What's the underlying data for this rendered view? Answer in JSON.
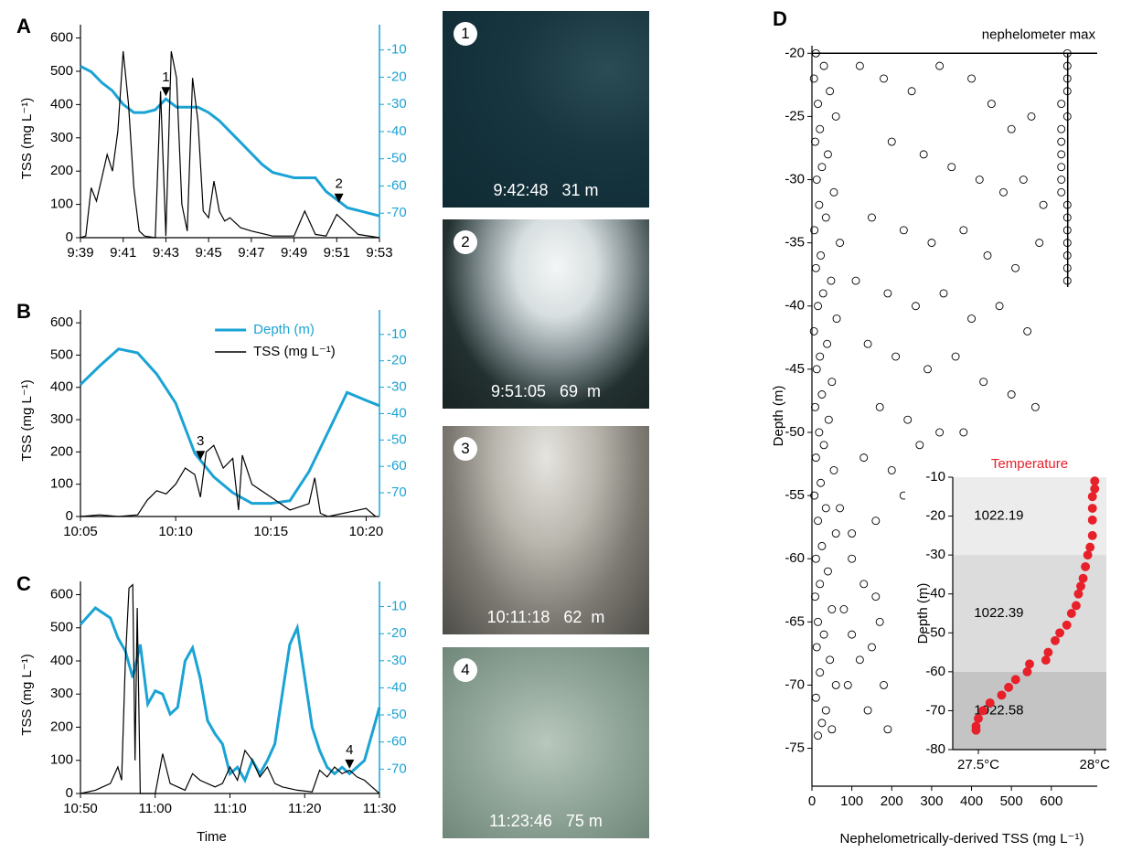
{
  "chart_data": [
    {
      "type": "line",
      "panel": "A",
      "ylabel": "TSS (mg L⁻¹)",
      "xlim": [
        579,
        593
      ],
      "xticks": [
        {
          "value": 579,
          "label": "9:39"
        },
        {
          "value": 581,
          "label": "9:41"
        },
        {
          "value": 583,
          "label": "9:43"
        },
        {
          "value": 585,
          "label": "9:45"
        },
        {
          "value": 587,
          "label": "9:47"
        },
        {
          "value": 589,
          "label": "9:49"
        },
        {
          "value": 591,
          "label": "9:51"
        },
        {
          "value": 593,
          "label": "9:53"
        }
      ],
      "ylim": [
        0,
        640
      ],
      "yticks": [
        0,
        100,
        200,
        300,
        400,
        500,
        600
      ],
      "y2lim": [
        -79,
        -0.7
      ],
      "y2ticks": [
        -70,
        -60,
        -50,
        -40,
        -30,
        -20,
        -10
      ],
      "series": [
        {
          "color": "#1aa3d4",
          "axis": "y2",
          "x": [
            579,
            579.5,
            580,
            580.5,
            581,
            581.5,
            582,
            582.5,
            583,
            583.5,
            584,
            584.5,
            585,
            585.5,
            586,
            586.5,
            587,
            587.5,
            588,
            588.5,
            589,
            589.5,
            590,
            590.5,
            591,
            591.5,
            592,
            592.5,
            593
          ],
          "values": [
            -16,
            -18,
            -22,
            -25,
            -30,
            -33,
            -33,
            -32,
            -28,
            -31,
            -31,
            -31,
            -33,
            -36,
            -40,
            -44,
            -48,
            -52,
            -55,
            -56,
            -57,
            -57,
            -57,
            -62,
            -65,
            -68,
            -69,
            -70,
            -71
          ]
        },
        {
          "color": "#000000",
          "x": [
            579,
            579.25,
            579.5,
            579.75,
            580,
            580.25,
            580.5,
            580.75,
            581,
            581.25,
            581.5,
            581.75,
            582,
            582.5,
            582.75,
            583,
            583.25,
            583.5,
            583.75,
            584,
            584.25,
            584.5,
            584.75,
            585,
            585.25,
            585.5,
            585.75,
            586,
            586.5,
            587,
            588,
            589,
            589.5,
            590,
            590.5,
            591,
            591.5,
            592,
            593
          ],
          "values": [
            0,
            5,
            150,
            110,
            180,
            250,
            200,
            320,
            560,
            400,
            150,
            20,
            5,
            0,
            440,
            5,
            560,
            480,
            100,
            20,
            480,
            350,
            80,
            60,
            170,
            80,
            50,
            60,
            30,
            20,
            5,
            5,
            80,
            10,
            5,
            70,
            40,
            10,
            0
          ]
        }
      ],
      "annotations": [
        {
          "text": "1",
          "x": 583,
          "y": 425
        },
        {
          "text": "2",
          "x": 591.1,
          "y": 105
        }
      ]
    },
    {
      "type": "line",
      "panel": "B",
      "ylabel": "TSS (mg L⁻¹)",
      "legend": "upper right",
      "xlim": [
        605,
        620.7
      ],
      "xticks": [
        {
          "value": 605,
          "label": "10:05"
        },
        {
          "value": 610,
          "label": "10:10"
        },
        {
          "value": 615,
          "label": "10:15"
        },
        {
          "value": 620,
          "label": "10:20"
        }
      ],
      "ylim": [
        0,
        640
      ],
      "yticks": [
        0,
        100,
        200,
        300,
        400,
        500,
        600
      ],
      "y2lim": [
        -79,
        -0.7
      ],
      "y2ticks": [
        -70,
        -60,
        -50,
        -40,
        -30,
        -20,
        -10
      ],
      "series": [
        {
          "name": "Depth (m)",
          "color": "#1aa3d4",
          "axis": "y2",
          "x": [
            605,
            606,
            607,
            608,
            609,
            610,
            611,
            612,
            613,
            614,
            615,
            616,
            617,
            618,
            619,
            620,
            620.7
          ],
          "values": [
            -29,
            -22,
            -15.5,
            -17,
            -25,
            -36,
            -55,
            -64,
            -70,
            -74,
            -74,
            -73,
            -62,
            -47,
            -32,
            -35,
            -37
          ]
        },
        {
          "name": "TSS (mg L⁻¹)",
          "color": "#000000",
          "x": [
            605,
            606,
            607,
            608,
            608.5,
            609,
            609.5,
            610,
            610.5,
            611,
            611.3,
            611.6,
            612,
            612.5,
            613,
            613.3,
            613.5,
            614,
            614.5,
            615,
            616,
            617,
            617.3,
            617.6,
            618,
            620,
            620.5
          ],
          "values": [
            0,
            5,
            0,
            5,
            50,
            80,
            70,
            100,
            150,
            130,
            60,
            200,
            220,
            150,
            180,
            20,
            190,
            100,
            80,
            60,
            20,
            40,
            120,
            10,
            0,
            25,
            0
          ]
        }
      ],
      "annotations": [
        {
          "text": "3",
          "x": 611.3,
          "y": 175
        }
      ]
    },
    {
      "type": "line",
      "panel": "C",
      "ylabel": "TSS (mg L⁻¹)",
      "xlabel": "Time",
      "xlim": [
        650,
        690
      ],
      "xticks": [
        {
          "value": 650,
          "label": "10:50"
        },
        {
          "value": 660,
          "label": "11:00"
        },
        {
          "value": 670,
          "label": "11:10"
        },
        {
          "value": 680,
          "label": "11:20"
        },
        {
          "value": 690,
          "label": "11:30"
        }
      ],
      "ylim": [
        0,
        640
      ],
      "yticks": [
        0,
        100,
        200,
        300,
        400,
        500,
        600
      ],
      "y2lim": [
        -79,
        -0.7
      ],
      "y2ticks": [
        -70,
        -60,
        -50,
        -40,
        -30,
        -20,
        -10
      ],
      "series": [
        {
          "color": "#1aa3d4",
          "axis": "y2",
          "x": [
            650,
            652,
            654,
            655,
            656,
            657,
            658,
            659,
            660,
            661,
            662,
            663,
            664,
            665,
            666,
            667,
            668,
            669,
            670,
            671,
            672,
            673,
            674,
            675,
            676,
            677,
            678,
            679,
            680,
            681,
            682,
            683,
            684,
            685,
            686,
            688,
            690
          ],
          "values": [
            -16.6,
            -10.5,
            -14.2,
            -21.5,
            -26.4,
            -36.2,
            -24,
            -46,
            -41.1,
            -42.3,
            -49.7,
            -47.2,
            -30.1,
            -25.2,
            -36.2,
            -52.1,
            -57,
            -60.7,
            -71.7,
            -69.3,
            -74.1,
            -66.8,
            -71.7,
            -66.8,
            -60.7,
            -42.3,
            -24,
            -17.8,
            -36.2,
            -54.6,
            -63.1,
            -69.3,
            -71.7,
            -69.3,
            -71.7,
            -66.8,
            -47.2
          ]
        },
        {
          "color": "#000000",
          "x": [
            650,
            652,
            654,
            655,
            655.5,
            656,
            656.5,
            657,
            657.3,
            657.6,
            658,
            660,
            661,
            662,
            664,
            665,
            666,
            668,
            669,
            670,
            671,
            672,
            673,
            674,
            675,
            676,
            677,
            679,
            681,
            682,
            683,
            684,
            685,
            686,
            687,
            688,
            689,
            690
          ],
          "values": [
            0,
            10,
            30,
            80,
            40,
            400,
            620,
            630,
            100,
            560,
            0,
            0,
            120,
            30,
            10,
            60,
            40,
            20,
            30,
            80,
            40,
            130,
            100,
            50,
            80,
            30,
            20,
            10,
            5,
            70,
            50,
            80,
            60,
            70,
            50,
            40,
            20,
            0
          ]
        }
      ],
      "annotations": [
        {
          "text": "4",
          "x": 686,
          "y": 75
        }
      ]
    },
    {
      "type": "scatter",
      "panel": "D",
      "ylabel": "Depth (m)",
      "xlabel": "Nephelometrically-derived TSS (mg L⁻¹)",
      "xlim": [
        0,
        715
      ],
      "xticks": [
        0,
        100,
        200,
        300,
        400,
        500,
        600
      ],
      "ylim": [
        -78,
        -19.4
      ],
      "yticks": [
        -75,
        -70,
        -65,
        -60,
        -55,
        -50,
        -45,
        -40,
        -35,
        -30,
        -25,
        -20
      ],
      "color": "#000000",
      "filled": false,
      "x": [
        10,
        30,
        5,
        45,
        15,
        60,
        20,
        8,
        40,
        25,
        12,
        55,
        18,
        35,
        6,
        70,
        22,
        10,
        48,
        28,
        15,
        62,
        5,
        38,
        20,
        12,
        50,
        25,
        8,
        42,
        18,
        30,
        10,
        55,
        22,
        6,
        35,
        15,
        60,
        25,
        10,
        40,
        20,
        8,
        50,
        15,
        30,
        12,
        45,
        20,
        60,
        10,
        35,
        25,
        50,
        15,
        100,
        130,
        160,
        170,
        150,
        120,
        100,
        80,
        180,
        190,
        140,
        90,
        70,
        100,
        120,
        180,
        250,
        320,
        400,
        450,
        500,
        550,
        200,
        280,
        350,
        420,
        480,
        530,
        580,
        150,
        230,
        300,
        380,
        440,
        510,
        570,
        110,
        190,
        260,
        330,
        400,
        470,
        540,
        140,
        210,
        290,
        360,
        430,
        500,
        560,
        170,
        240,
        320,
        380,
        130,
        200,
        270,
        230,
        160,
        640,
        640,
        640,
        640,
        625,
        640,
        625,
        625,
        625,
        625,
        625,
        625,
        640,
        640,
        640,
        640,
        640,
        640,
        640
      ],
      "values": [
        -20,
        -21,
        -22,
        -23,
        -24,
        -25,
        -26,
        -27,
        -28,
        -29,
        -30,
        -31,
        -32,
        -33,
        -34,
        -35,
        -36,
        -37,
        -38,
        -39,
        -40,
        -41,
        -42,
        -43,
        -44,
        -45,
        -46,
        -47,
        -48,
        -49,
        -50,
        -51,
        -52,
        -53,
        -54,
        -55,
        -56,
        -57,
        -58,
        -59,
        -60,
        -61,
        -62,
        -63,
        -64,
        -65,
        -66,
        -67,
        -68,
        -69,
        -70,
        -71,
        -72,
        -73,
        -73.5,
        -74,
        -60,
        -62,
        -63,
        -65,
        -67,
        -68,
        -66,
        -64,
        -70,
        -73.5,
        -72,
        -70,
        -56,
        -58,
        -21,
        -22,
        -23,
        -21,
        -22,
        -24,
        -26,
        -25,
        -27,
        -28,
        -29,
        -30,
        -31,
        -30,
        -32,
        -33,
        -34,
        -35,
        -34,
        -36,
        -37,
        -35,
        -38,
        -39,
        -40,
        -39,
        -41,
        -40,
        -42,
        -43,
        -44,
        -45,
        -44,
        -46,
        -47,
        -48,
        -48,
        -49,
        -50,
        -50,
        -52,
        -53,
        -51,
        -55,
        -57,
        -20,
        -21,
        -22,
        -23,
        -24,
        -25,
        -26,
        -27,
        -28,
        -29,
        -30,
        -31,
        -32,
        -33,
        -34,
        -35,
        -36,
        -37,
        -38
      ],
      "annotations": [
        {
          "text": "nephelometer max",
          "x": 641,
          "y": -20,
          "y_end": -38.5
        }
      ]
    },
    {
      "type": "scatter",
      "title": "Temperature",
      "title_color": "#e8202a",
      "ylabel": "Depth (m)",
      "xlim": [
        27.39,
        28.05
      ],
      "xticks": [
        {
          "value": 27.5,
          "label": "27.5°C"
        },
        {
          "value": 28,
          "label": "28°C"
        }
      ],
      "ylim": [
        -80,
        -10
      ],
      "yticks": [
        -80,
        -70,
        -60,
        -50,
        -40,
        -30,
        -20,
        -10
      ],
      "color": "#e8202a",
      "filled": true,
      "bands": [
        {
          "from": -10,
          "to": -30,
          "label": "1022.19",
          "color": "#ececec"
        },
        {
          "from": -30,
          "to": -60,
          "label": "1022.39",
          "color": "#dcdcdc"
        },
        {
          "from": -60,
          "to": -80,
          "label": "1022.58",
          "color": "#c4c4c4"
        }
      ],
      "x": [
        28.0,
        28.0,
        27.99,
        27.99,
        27.99,
        27.99,
        27.98,
        27.97,
        27.96,
        27.95,
        27.94,
        27.93,
        27.92,
        27.9,
        27.88,
        27.85,
        27.83,
        27.8,
        27.79,
        27.72,
        27.71,
        27.66,
        27.63,
        27.6,
        27.55,
        27.52,
        27.5,
        27.49,
        27.49
      ],
      "values": [
        -11,
        -13,
        -15,
        -18,
        -21,
        -25,
        -28,
        -30,
        -33,
        -36,
        -38,
        -40,
        -43,
        -45,
        -48,
        -50,
        -52,
        -55,
        -57,
        -58,
        -60,
        -62,
        -64,
        -66,
        -68,
        -70,
        -72,
        -74,
        -75
      ]
    }
  ],
  "photos": [
    {
      "number": "1",
      "caption": "9:42:48   31 m"
    },
    {
      "number": "2",
      "caption": "9:51:05   69  m"
    },
    {
      "number": "3",
      "caption": "10:11:18   62  m"
    },
    {
      "number": "4",
      "caption": "11:23:46   75 m"
    }
  ]
}
